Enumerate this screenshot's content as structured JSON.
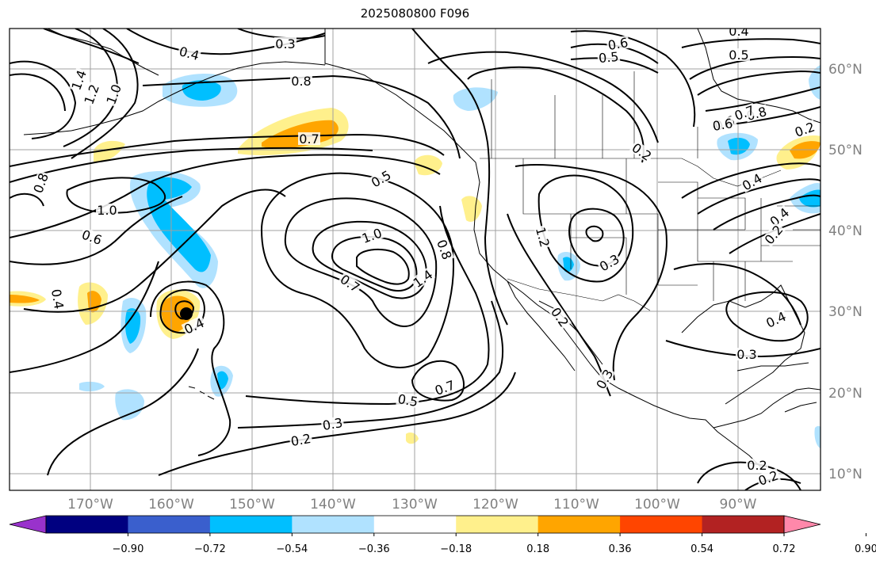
{
  "title": "2025080800 F096",
  "map": {
    "lat_labels": [
      "60°N",
      "50°N",
      "40°N",
      "30°N",
      "20°N",
      "10°N"
    ],
    "lon_labels": [
      "170°W",
      "160°W",
      "150°W",
      "140°W",
      "130°W",
      "120°W",
      "110°W",
      "100°W",
      "90°W"
    ],
    "contour_labels": [
      "0.3",
      "0.4",
      "0.8",
      "0.7",
      "0.6",
      "0.5",
      "0.6",
      "0.4",
      "0.5",
      "0.8",
      "0.6",
      "0.7",
      "1.4",
      "1.2",
      "1.0",
      "1.0",
      "0.8",
      "0.6",
      "0.5",
      "0.2",
      "1.0",
      "0.8",
      "0.7",
      "1.4",
      "1.2",
      "0.3",
      "0.4",
      "0.4",
      "0.2",
      "0.4",
      "0.7",
      "0.5",
      "0.3",
      "0.2",
      "0.3",
      "0.3",
      "0.4",
      "0.2",
      "0.2",
      "0.2",
      "0.4",
      "0.2"
    ],
    "colors": {
      "contour": "#000000",
      "grid": "#a0a0a0",
      "coast": "#000000"
    }
  },
  "colorbar": {
    "ticks": [
      "−0.90",
      "−0.72",
      "−0.54",
      "−0.36",
      "−0.18",
      "0.18",
      "0.36",
      "0.54",
      "0.72",
      "0.90"
    ],
    "colors": [
      "#9932cc",
      "#000080",
      "#3a5fcd",
      "#00bfff",
      "#b0e2ff",
      "#ffffff",
      "#fff08c",
      "#ffa500",
      "#ff4500",
      "#b22222",
      "#ff88aa"
    ]
  }
}
